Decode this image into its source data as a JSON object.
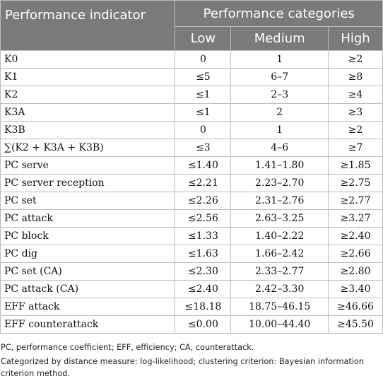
{
  "table": {
    "header_indicator": "Performance indicator",
    "header_categories": "Performance categories",
    "sub_headers": [
      "Low",
      "Medium",
      "High"
    ],
    "rows": [
      {
        "name": "K0",
        "low": "0",
        "medium": "1",
        "high": "≥2"
      },
      {
        "name": "K1",
        "low": "≤5",
        "medium": "6–7",
        "high": "≥8"
      },
      {
        "name": "K2",
        "low": "≤1",
        "medium": "2–3",
        "high": "≥4"
      },
      {
        "name": "K3A",
        "low": "≤1",
        "medium": "2",
        "high": "≥3"
      },
      {
        "name": "K3B",
        "low": "0",
        "medium": "1",
        "high": "≥2"
      },
      {
        "name": "∑(K2 + K3A + K3B)",
        "low": "≤3",
        "medium": "4–6",
        "high": "≥7"
      },
      {
        "name": "PC serve",
        "low": "≤1.40",
        "medium": "1.41–1.80",
        "high": "≥1.85"
      },
      {
        "name": "PC server reception",
        "low": "≤2.21",
        "medium": "2.23–2.70",
        "high": "≥2.75"
      },
      {
        "name": "PC set",
        "low": "≤2.26",
        "medium": "2.31–2.76",
        "high": "≥2.77"
      },
      {
        "name": "PC attack",
        "low": "≤2.56",
        "medium": "2.63–3.25",
        "high": "≥3.27"
      },
      {
        "name": "PC block",
        "low": "≤1.33",
        "medium": "1.40–2.22",
        "high": "≥2.40"
      },
      {
        "name": "PC dig",
        "low": "≤1.63",
        "medium": "1.66–2.42",
        "high": "≥2.66"
      },
      {
        "name": "PC set (CA)",
        "low": "≤2.30",
        "medium": "2.33–2.77",
        "high": "≥2.80"
      },
      {
        "name": "PC attack (CA)",
        "low": "≤2.40",
        "medium": "2.42–3.30",
        "high": "≥3.40"
      },
      {
        "name": "EFF attack",
        "low": "≤18.18",
        "medium": "18.75–46.15",
        "high": "≥46.66"
      },
      {
        "name": "EFF counterattack",
        "low": "≤0.00",
        "medium": "10.00–44.40",
        "high": "≥45.50"
      }
    ]
  },
  "footnotes": {
    "line1": "PC, performance coefficient; EFF, efficiency; CA, counterattack.",
    "line2": "Categorized by distance measure: log-likelihood; clustering criterion: Bayesian information",
    "line3": "criterion method."
  }
}
